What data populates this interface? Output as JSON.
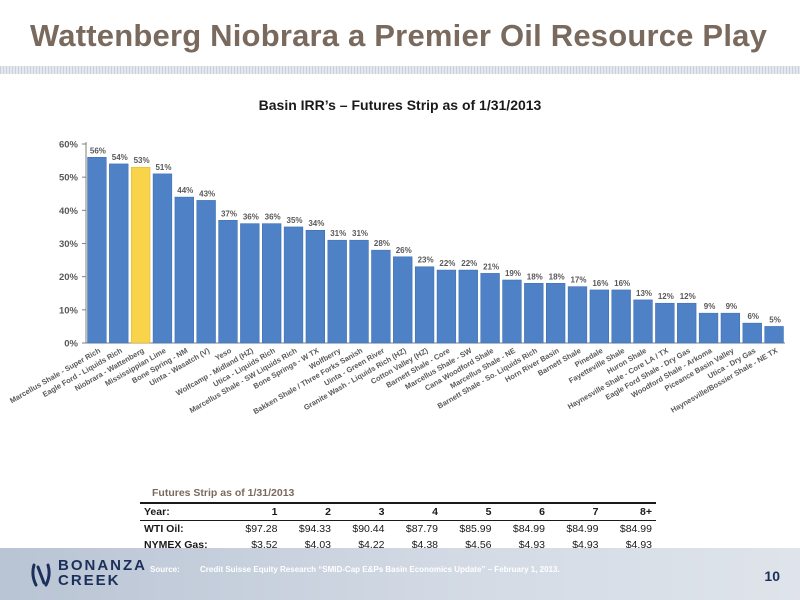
{
  "slide": {
    "title": "Wattenberg Niobrara a Premier Oil Resource Play",
    "page_number": "10"
  },
  "chart_data": {
    "type": "bar",
    "title": "Basin IRR’s – Futures Strip as of 1/31/2013",
    "xlabel": "",
    "ylabel": "",
    "ylim": [
      0,
      60
    ],
    "yticks": [
      "0%",
      "10%",
      "20%",
      "30%",
      "40%",
      "50%",
      "60%"
    ],
    "grid": false,
    "highlight_category": "Niobrara - Wattenberg",
    "colors": {
      "bar": "#4f81c7",
      "highlight": "#f9d44a",
      "bar_edge": "#3a6aad"
    },
    "categories": [
      "Marcellus Shale - Super Rich",
      "Eagle Ford - Liquids Rich",
      "Niobrara - Wattenberg",
      "Mississippian Lime",
      "Bone Spring - NM",
      "Uinta - Wasatch (V)",
      "Yeso",
      "Wolfcamp - Midland (HZ)",
      "Utica - Liquids Rich",
      "Marcellus Shale - SW Liquids Rich",
      "Bone Springs - W TX",
      "Wolfberry",
      "Bakken Shale / Three Forks Sanish",
      "Uinta - Green River",
      "Granite Wash - Liquids Rich (HZ)",
      "Cotton Valley (HZ)",
      "Barnett Shale - Core",
      "Marcellus Shale - SW",
      "Cana Woodford Shale",
      "Marcellus Shale - NE",
      "Barnett Shale - So. Liquids Rich",
      "Horn River Basin",
      "Barnett Shale",
      "Pinedale",
      "Fayetteville Shale",
      "Huron Shale",
      "Haynesville Shale - Core LA / TX",
      "Eagle Ford Shale - Dry Gas",
      "Woodford Shale - Arkoma",
      "Piceance Basin Valley",
      "Utica - Dry Gas",
      "Haynesville/Bossier Shale - NE TX"
    ],
    "values": [
      56,
      54,
      53,
      51,
      44,
      43,
      37,
      36,
      36,
      35,
      34,
      31,
      31,
      28,
      26,
      23,
      22,
      22,
      21,
      19,
      18,
      18,
      17,
      16,
      16,
      13,
      12,
      12,
      9,
      9,
      6,
      5
    ],
    "value_labels": [
      "56%",
      "54%",
      "53%",
      "51%",
      "44%",
      "43%",
      "37%",
      "36%",
      "36%",
      "35%",
      "34%",
      "31%",
      "31%",
      "28%",
      "26%",
      "23%",
      "22%",
      "22%",
      "21%",
      "19%",
      "18%",
      "18%",
      "17%",
      "16%",
      "16%",
      "13%",
      "12%",
      "12%",
      "9%",
      "9%",
      "6%",
      "5%"
    ]
  },
  "futures_strip": {
    "caption": "Futures Strip as of 1/31/2013",
    "year_label": "Year:",
    "years": [
      "1",
      "2",
      "3",
      "4",
      "5",
      "6",
      "7",
      "8+"
    ],
    "wti_label": "WTI Oil:",
    "wti": [
      "$97.28",
      "$94.33",
      "$90.44",
      "$87.79",
      "$85.99",
      "$84.99",
      "$84.99",
      "$84.99"
    ],
    "gas_label": "NYMEX Gas:",
    "gas": [
      "$3.52",
      "$4.03",
      "$4.22",
      "$4.38",
      "$4.56",
      "$4.93",
      "$4.93",
      "$4.93"
    ]
  },
  "footer": {
    "logo_line1": "BONANZA",
    "logo_line2": "CREEK",
    "source_label": "Source:",
    "source_text": "Credit Suisse Equity Research “SMID-Cap E&Ps Basin Economics Update” – February 1, 2013."
  }
}
